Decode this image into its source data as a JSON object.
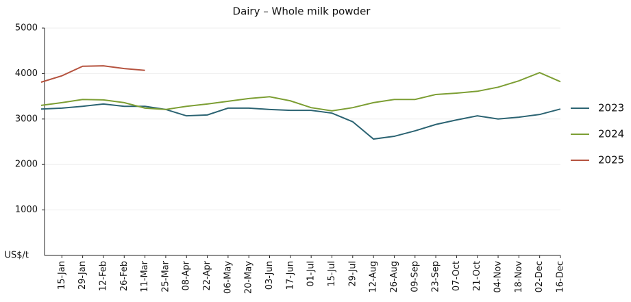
{
  "chart_data": {
    "type": "line",
    "title": "Dairy – Whole milk powder",
    "y_label": "US$/t",
    "categories": [
      null,
      "15-Jan",
      "29-Jan",
      "12-Feb",
      "26-Feb",
      "11-Mar",
      "25-Mar",
      "08-Apr",
      "22-Apr",
      "06-May",
      "20-May",
      "03-Jun",
      "17-Jun",
      "01-Jul",
      "15-Jul",
      "29-Jul",
      "12-Aug",
      "26-Aug",
      "09-Sep",
      "23-Sep",
      "07-Oct",
      "21-Oct",
      "04-Nov",
      "18-Nov",
      "02-Dec",
      "16-Dec"
    ],
    "series": [
      {
        "name": "2023",
        "color": "#2b6372",
        "values": [
          3220,
          3240,
          3280,
          3330,
          3280,
          3280,
          3210,
          3070,
          3090,
          3240,
          3240,
          3210,
          3190,
          3190,
          3130,
          2940,
          2560,
          2620,
          2740,
          2880,
          2980,
          3070,
          3000,
          3040,
          3100,
          3220
        ]
      },
      {
        "name": "2024",
        "color": "#7c9e33",
        "values": [
          3300,
          3360,
          3430,
          3420,
          3360,
          3240,
          3210,
          3280,
          3330,
          3390,
          3450,
          3490,
          3400,
          3250,
          3180,
          3250,
          3360,
          3430,
          3430,
          3540,
          3570,
          3610,
          3700,
          3840,
          4020,
          3820
        ]
      },
      {
        "name": "2025",
        "color": "#b5533f",
        "values": [
          3810,
          3950,
          4160,
          4170,
          4110,
          4070,
          null,
          null,
          null,
          null,
          null,
          null,
          null,
          null,
          null,
          null,
          null,
          null,
          null,
          null,
          null,
          null,
          null,
          null,
          null,
          null
        ]
      }
    ],
    "ylim": [
      0,
      5000
    ],
    "yticks": [
      1000,
      2000,
      3000,
      4000,
      5000
    ],
    "grid": true,
    "legend": "right"
  }
}
